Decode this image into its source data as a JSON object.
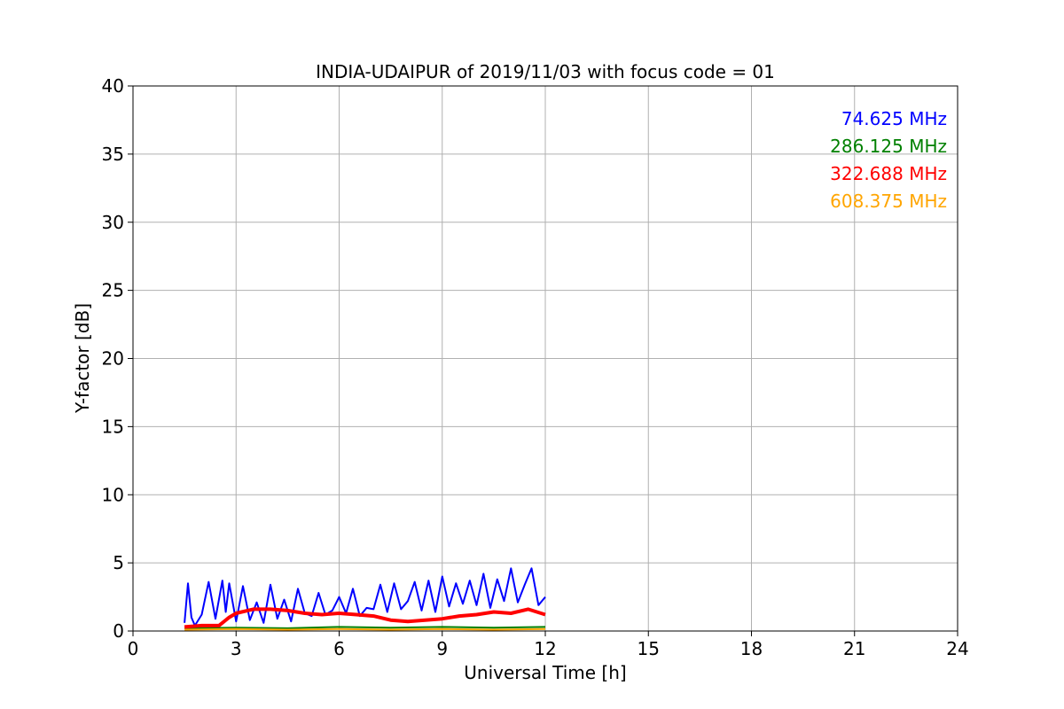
{
  "chart_data": {
    "type": "line",
    "title": "INDIA-UDAIPUR of 2019/11/03 with focus code = 01",
    "xlabel": "Universal Time [h]",
    "ylabel": "Y-factor [dB]",
    "xlim": [
      0,
      24
    ],
    "ylim": [
      0,
      40
    ],
    "xticks": [
      0,
      3,
      6,
      9,
      12,
      15,
      18,
      21,
      24
    ],
    "yticks": [
      0,
      5,
      10,
      15,
      20,
      25,
      30,
      35,
      40
    ],
    "grid": true,
    "legend_position": "top-right",
    "series": [
      {
        "name": "74.625 MHz",
        "color": "#0000ff",
        "x": [
          1.5,
          1.6,
          1.7,
          1.8,
          2.0,
          2.2,
          2.4,
          2.6,
          2.7,
          2.8,
          3.0,
          3.2,
          3.4,
          3.6,
          3.8,
          4.0,
          4.2,
          4.4,
          4.6,
          4.8,
          5.0,
          5.2,
          5.4,
          5.6,
          5.8,
          6.0,
          6.2,
          6.4,
          6.6,
          6.8,
          7.0,
          7.2,
          7.4,
          7.6,
          7.8,
          8.0,
          8.2,
          8.4,
          8.6,
          8.8,
          9.0,
          9.2,
          9.4,
          9.6,
          9.8,
          10.0,
          10.2,
          10.4,
          10.6,
          10.8,
          11.0,
          11.2,
          11.4,
          11.6,
          11.8,
          12.0
        ],
        "y": [
          0.6,
          3.5,
          1.0,
          0.4,
          1.2,
          3.6,
          0.9,
          3.7,
          1.4,
          3.5,
          0.7,
          3.3,
          0.8,
          2.1,
          0.6,
          3.4,
          0.9,
          2.3,
          0.7,
          3.1,
          1.3,
          1.1,
          2.8,
          1.2,
          1.5,
          2.5,
          1.3,
          3.1,
          1.1,
          1.7,
          1.6,
          3.4,
          1.4,
          3.5,
          1.6,
          2.2,
          3.6,
          1.5,
          3.7,
          1.4,
          4.0,
          1.8,
          3.5,
          2.0,
          3.7,
          1.9,
          4.2,
          1.7,
          3.8,
          2.2,
          4.6,
          2.1,
          3.4,
          4.6,
          1.9,
          2.5
        ]
      },
      {
        "name": "286.125 MHz",
        "color": "#008000",
        "x": [
          1.5,
          3.0,
          4.5,
          6.0,
          7.5,
          9.0,
          10.5,
          12.0
        ],
        "y": [
          0.2,
          0.25,
          0.2,
          0.3,
          0.25,
          0.3,
          0.25,
          0.3
        ]
      },
      {
        "name": "322.688 MHz",
        "color": "#ff0000",
        "x": [
          1.5,
          2.0,
          2.5,
          2.8,
          3.0,
          3.5,
          4.0,
          4.5,
          5.0,
          5.5,
          6.0,
          6.5,
          7.0,
          7.5,
          8.0,
          8.5,
          9.0,
          9.5,
          10.0,
          10.5,
          11.0,
          11.5,
          12.0
        ],
        "y": [
          0.3,
          0.4,
          0.4,
          1.0,
          1.3,
          1.6,
          1.6,
          1.5,
          1.3,
          1.2,
          1.3,
          1.2,
          1.1,
          0.8,
          0.7,
          0.8,
          0.9,
          1.1,
          1.2,
          1.4,
          1.3,
          1.6,
          1.2
        ]
      },
      {
        "name": "608.375 MHz",
        "color": "#ffa500",
        "x": [
          1.5,
          3.0,
          4.5,
          6.0,
          7.5,
          9.0,
          10.5,
          12.0
        ],
        "y": [
          0.1,
          0.15,
          0.1,
          0.15,
          0.1,
          0.15,
          0.1,
          0.15
        ]
      }
    ]
  }
}
